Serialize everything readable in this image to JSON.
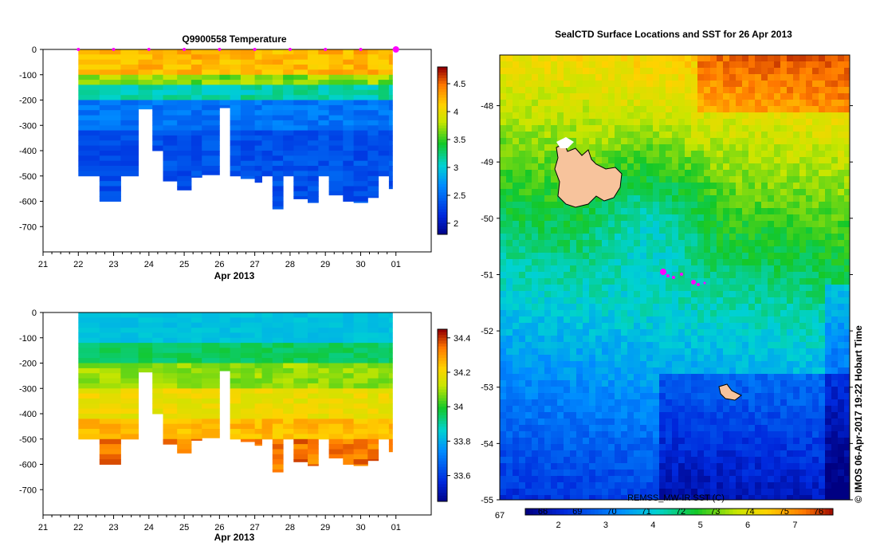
{
  "chart_data": [
    {
      "type": "heatmap",
      "title": "Q9900558  Temperature",
      "xlabel": "Apr 2013",
      "x_ticks": [
        "21",
        "22",
        "23",
        "24",
        "25",
        "26",
        "27",
        "28",
        "29",
        "30",
        "01"
      ],
      "x_range": [
        21,
        32
      ],
      "y_ticks": [
        "0",
        "-100",
        "-200",
        "-300",
        "-400",
        "-500",
        "-600",
        "-700"
      ],
      "y_range": [
        -800,
        0
      ],
      "colorbar": {
        "range": [
          1.8,
          4.8
        ],
        "ticks": [
          "2",
          "2.5",
          "3",
          "3.5",
          "4",
          "4.5"
        ]
      },
      "profile_markers_day": [
        22,
        23,
        24,
        25,
        26,
        27,
        28,
        29,
        30,
        31
      ],
      "profiles_day_start": [
        22,
        22.6,
        23.2,
        23.7,
        24.1,
        24.4,
        24.8,
        25.2,
        25.5,
        26.0,
        26.3,
        26.6,
        27.0,
        27.2,
        27.5,
        27.8,
        28.1,
        28.5,
        28.8,
        29.1,
        29.5,
        29.8,
        30.2,
        30.5,
        30.8
      ],
      "profiles_max_depth": [
        500,
        600,
        500,
        235,
        400,
        520,
        555,
        505,
        495,
        230,
        500,
        510,
        525,
        500,
        630,
        500,
        590,
        605,
        500,
        575,
        600,
        605,
        585,
        500,
        550
      ]
    },
    {
      "type": "heatmap",
      "title": "",
      "xlabel": "Apr 2013",
      "x_ticks": [
        "21",
        "22",
        "23",
        "24",
        "25",
        "26",
        "27",
        "28",
        "29",
        "30",
        "01"
      ],
      "x_range": [
        21,
        32
      ],
      "y_ticks": [
        "0",
        "-100",
        "-200",
        "-300",
        "-400",
        "-500",
        "-600",
        "-700"
      ],
      "y_range": [
        -800,
        0
      ],
      "colorbar": {
        "range": [
          33.45,
          34.45
        ],
        "ticks": [
          "33.6",
          "33.8",
          "34",
          "34.2",
          "34.4"
        ]
      }
    },
    {
      "type": "heatmap",
      "title": "SealCTD Surface Locations and SST for 26 Apr 2013",
      "y_ticks": [
        "-48",
        "-49",
        "-50",
        "-51",
        "-52",
        "-53",
        "-54",
        "-55"
      ],
      "y_range": [
        -55,
        -47.1
      ],
      "x_tick_label": "67",
      "colorbar": {
        "label": "REMSS_MW-IR SST (C)",
        "celsius_ticks": [
          "2",
          "3",
          "4",
          "5",
          "6",
          "7"
        ],
        "fahrenheit_ticks": [
          "66",
          "69",
          "70",
          "71",
          "72",
          "73",
          "74",
          "75",
          "76"
        ]
      },
      "watermark": "IMOS 06-Apr-2017 19:22 Hobart Time",
      "copyright_mark": "©"
    }
  ]
}
